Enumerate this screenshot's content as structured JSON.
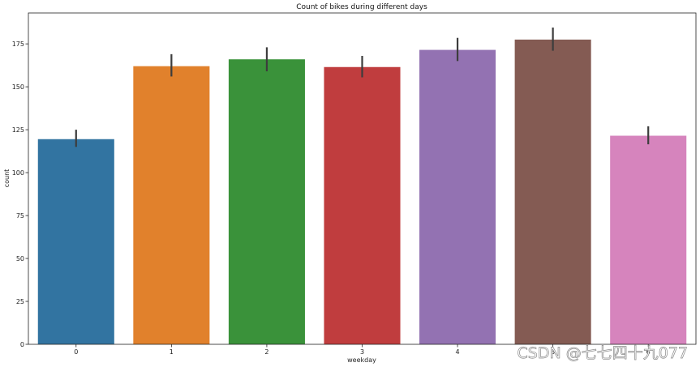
{
  "chart_data": {
    "type": "bar",
    "title": "Count of bikes during different days",
    "xlabel": "weekday",
    "ylabel": "count",
    "categories": [
      "0",
      "1",
      "2",
      "3",
      "4",
      "5",
      "6"
    ],
    "values": [
      119.5,
      162.0,
      166.0,
      161.5,
      171.5,
      177.5,
      121.5
    ],
    "error_low": [
      115.0,
      156.0,
      159.0,
      155.5,
      165.0,
      171.0,
      116.5
    ],
    "error_high": [
      125.0,
      169.0,
      173.0,
      168.0,
      178.5,
      184.5,
      127.0
    ],
    "colors": [
      "#3274a1",
      "#e1812c",
      "#3a923a",
      "#c03d3e",
      "#9372b2",
      "#845b53",
      "#d684bd"
    ],
    "error_color": "#3d3d3d",
    "ylim": [
      0,
      193
    ],
    "yticks": [
      0,
      25,
      50,
      75,
      100,
      125,
      150,
      175
    ],
    "grid": false,
    "legend": "none"
  },
  "watermark": "CSDN @七七四十九077"
}
